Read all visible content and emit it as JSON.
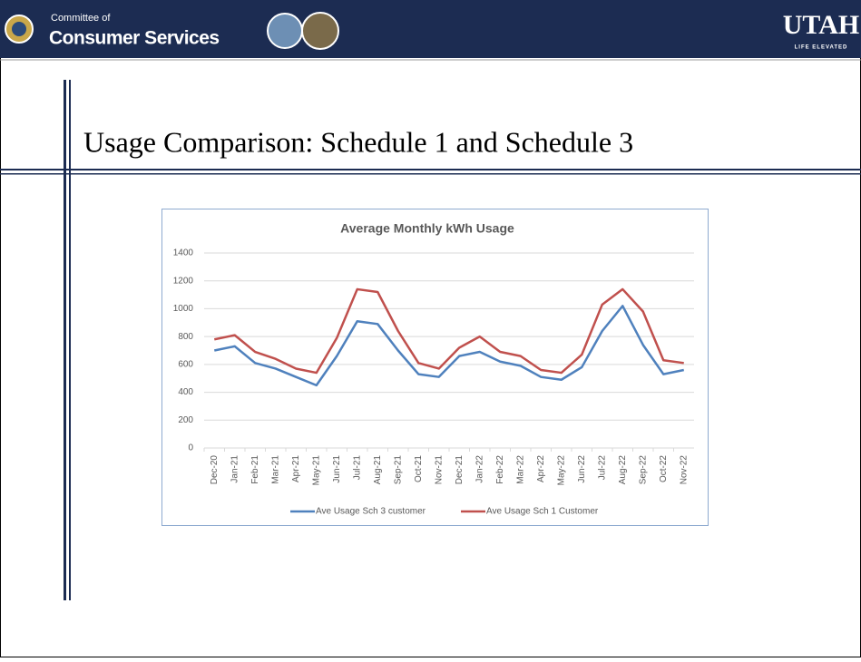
{
  "header": {
    "org_small": "Committee of",
    "org": "Consumer Services",
    "brand": "UTAH",
    "tagline": "LIFE ELEVATED"
  },
  "slide_title": "Usage Comparison: Schedule 1 and Schedule 3",
  "chart_data": {
    "type": "line",
    "title": "Average Monthly kWh Usage",
    "categories": [
      "Dec-20",
      "Jan-21",
      "Feb-21",
      "Mar-21",
      "Apr-21",
      "May-21",
      "Jun-21",
      "Jul-21",
      "Aug-21",
      "Sep-21",
      "Oct-21",
      "Nov-21",
      "Dec-21",
      "Jan-22",
      "Feb-22",
      "Mar-22",
      "Apr-22",
      "May-22",
      "Jun-22",
      "Jul-22",
      "Aug-22",
      "Sep-22",
      "Oct-22",
      "Nov-22"
    ],
    "series": [
      {
        "name": "Ave Usage Sch 3 customer",
        "color": "#4f81bd",
        "values": [
          700,
          730,
          610,
          570,
          510,
          450,
          660,
          910,
          890,
          700,
          530,
          510,
          660,
          690,
          620,
          590,
          510,
          490,
          580,
          840,
          1020,
          740,
          530,
          560
        ]
      },
      {
        "name": "Ave Usage Sch 1 Customer",
        "color": "#c0504d",
        "values": [
          780,
          810,
          690,
          640,
          570,
          540,
          790,
          1140,
          1120,
          840,
          610,
          570,
          720,
          800,
          690,
          660,
          560,
          540,
          670,
          1030,
          1140,
          980,
          630,
          610
        ]
      }
    ],
    "ylim": [
      0,
      1400
    ],
    "yticks": [
      0,
      200,
      400,
      600,
      800,
      1000,
      1200,
      1400
    ],
    "grid": true,
    "legend": "bottom"
  }
}
